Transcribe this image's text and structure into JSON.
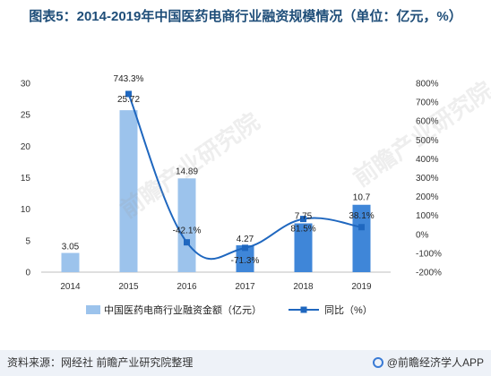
{
  "title": "图表5：2014-2019年中国医药电商行业融资规模情况（单位：亿元，%）",
  "source": "资料来源：网经社  前瞻产业研究院整理",
  "brand": "@前瞻经济学人APP",
  "watermark": "前瞻产业研究院",
  "colors": {
    "bar_light": "#9cc3ec",
    "bar_dark": "#3f86d8",
    "line": "#1f67bf",
    "title": "#1f4e79"
  },
  "chart_data": {
    "type": "bar",
    "categories": [
      "2014",
      "2015",
      "2016",
      "2017",
      "2018",
      "2019"
    ],
    "series": [
      {
        "name": "中国医药电商行业融资金额（亿元）",
        "type": "bar",
        "axis": "left",
        "values": [
          3.05,
          25.72,
          14.89,
          4.27,
          7.75,
          10.7
        ],
        "labels": [
          "3.05",
          "25.72",
          "14.89",
          "4.27",
          "7.75",
          "10.7"
        ]
      },
      {
        "name": "同比（%）",
        "type": "line",
        "axis": "right",
        "values": [
          null,
          743.3,
          -42.1,
          -71.3,
          81.5,
          38.1
        ],
        "labels": [
          "",
          "743.3%",
          "-42.1%",
          "-71.3%",
          "81.5%",
          "38.1%"
        ]
      }
    ],
    "y_left": {
      "ylim": [
        0,
        30
      ],
      "ticks": [
        "0",
        "5",
        "10",
        "15",
        "20",
        "25",
        "30"
      ]
    },
    "y_right": {
      "ylim": [
        -200,
        800
      ],
      "ticks": [
        "-200%",
        "-100%",
        "0%",
        "100%",
        "200%",
        "300%",
        "400%",
        "500%",
        "600%",
        "700%",
        "800%"
      ]
    },
    "grid": false,
    "legend_position": "bottom"
  }
}
